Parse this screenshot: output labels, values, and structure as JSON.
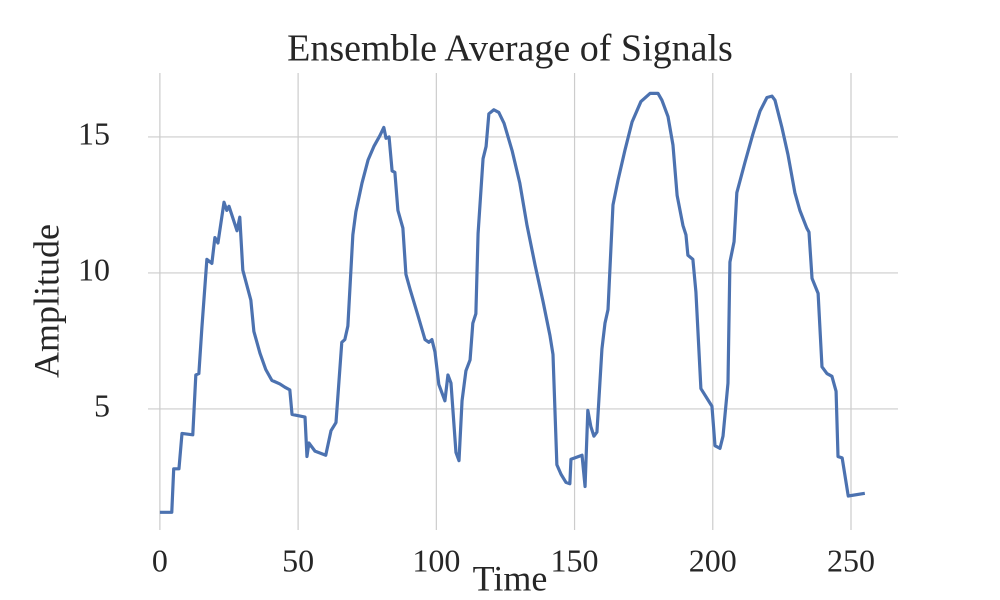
{
  "chart_data": {
    "type": "line",
    "title": "Ensemble Average of Signals",
    "x_label": "Time",
    "y_label": "Amplitude",
    "color": "#4c72b0",
    "grid": true,
    "xlim": [
      -4.3,
      267
    ],
    "ylim": [
      0.55,
      17.35
    ],
    "xticks": [
      0,
      50,
      100,
      150,
      200,
      250
    ],
    "yticks": [
      5,
      10,
      15
    ],
    "x": [
      0,
      4.3,
      5,
      6.9,
      8,
      11.9,
      13,
      14.1,
      15.2,
      17,
      18.8,
      19.9,
      21,
      23.2,
      24.2,
      25,
      27.9,
      28.9,
      30,
      32.9,
      34,
      36.2,
      38.3,
      40.5,
      43.4,
      45.2,
      47,
      47.8,
      52.5,
      53.2,
      53.9,
      56.1,
      60,
      61.9,
      63.7,
      65.8,
      66.9,
      68,
      69.8,
      70.9,
      73.1,
      75.3,
      77.4,
      79.6,
      81,
      81.8,
      82.9,
      84,
      85,
      86.1,
      87.9,
      89,
      90.5,
      93.3,
      95.9,
      97.3,
      98.4,
      99.5,
      100.9,
      103.1,
      104.2,
      105.3,
      107.1,
      108.2,
      109.3,
      110.7,
      112.2,
      113.2,
      114.3,
      115.1,
      116.9,
      118,
      119,
      120.8,
      122.6,
      124.5,
      127.4,
      130.2,
      132.8,
      135.7,
      138.6,
      141.1,
      142.2,
      143.6,
      145.1,
      146.9,
      148.3,
      148.7,
      150.1,
      152.7,
      153.8,
      154.8,
      155.9,
      157,
      158.1,
      159.9,
      161,
      162.1,
      163.9,
      165.7,
      168.2,
      170.8,
      174,
      177.3,
      180.2,
      181.6,
      183.8,
      185.6,
      187.1,
      189.2,
      190.3,
      191,
      192.8,
      193.9,
      195.7,
      199.7,
      200.8,
      202.6,
      203.7,
      205.5,
      206.2,
      207.7,
      208.7,
      211.6,
      214.5,
      217.1,
      219.6,
      221.4,
      222.5,
      225,
      227.2,
      229.7,
      231.5,
      234,
      234.8,
      235.9,
      238.1,
      239.5,
      241.3,
      243.1,
      244.6,
      245.3,
      246.8,
      249,
      255
    ],
    "values": [
      1.2,
      1.2,
      2.8,
      2.8,
      4.1,
      4.05,
      6.25,
      6.3,
      8.0,
      10.5,
      10.35,
      11.3,
      11.1,
      12.6,
      12.3,
      12.45,
      11.55,
      12.05,
      10.1,
      9.0,
      7.85,
      7.05,
      6.45,
      6.05,
      5.92,
      5.8,
      5.7,
      4.8,
      4.7,
      3.25,
      3.75,
      3.45,
      3.3,
      4.2,
      4.5,
      7.45,
      7.55,
      8.05,
      11.4,
      12.25,
      13.3,
      14.15,
      14.65,
      15.05,
      15.35,
      14.95,
      15.0,
      13.75,
      13.7,
      12.3,
      11.65,
      9.95,
      9.4,
      8.45,
      7.55,
      7.45,
      7.55,
      7.1,
      5.9,
      5.3,
      6.25,
      5.95,
      3.4,
      3.1,
      5.3,
      6.4,
      6.8,
      8.15,
      8.5,
      11.45,
      14.2,
      14.65,
      15.85,
      16.0,
      15.9,
      15.5,
      14.5,
      13.3,
      11.75,
      10.3,
      8.95,
      7.7,
      7.0,
      2.95,
      2.6,
      2.3,
      2.25,
      3.15,
      3.2,
      3.3,
      2.15,
      4.95,
      4.35,
      4.0,
      4.15,
      7.2,
      8.15,
      8.65,
      12.5,
      13.4,
      14.5,
      15.55,
      16.3,
      16.6,
      16.6,
      16.35,
      15.75,
      14.7,
      12.85,
      11.75,
      11.4,
      10.65,
      10.5,
      9.3,
      5.75,
      5.1,
      3.65,
      3.55,
      4.0,
      5.95,
      10.4,
      11.15,
      12.95,
      14.05,
      15.1,
      15.95,
      16.45,
      16.5,
      16.35,
      15.35,
      14.35,
      12.95,
      12.3,
      11.65,
      11.5,
      9.8,
      9.25,
      6.55,
      6.3,
      6.2,
      5.65,
      3.25,
      3.2,
      1.8,
      1.9
    ]
  }
}
